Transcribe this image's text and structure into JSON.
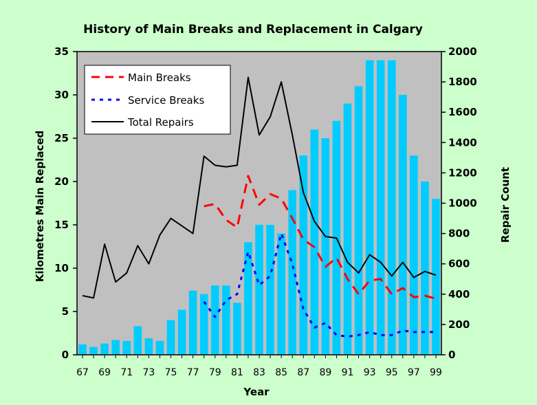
{
  "chart_data": {
    "type": "bar",
    "title": "History of Main Breaks and Replacement in Calgary",
    "xlabel": "Year",
    "ylabel": "Kilometres Main Replaced",
    "y2label": "Repair Count",
    "ylim": [
      0,
      35
    ],
    "y2lim": [
      0,
      2000
    ],
    "yticks": [
      0,
      5,
      10,
      15,
      20,
      25,
      30,
      35
    ],
    "y2ticks": [
      0,
      200,
      400,
      600,
      800,
      1000,
      1200,
      1400,
      1600,
      1800,
      2000
    ],
    "x": [
      "67",
      "68",
      "69",
      "70",
      "71",
      "72",
      "73",
      "74",
      "75",
      "76",
      "77",
      "78",
      "79",
      "80",
      "81",
      "82",
      "83",
      "84",
      "85",
      "86",
      "87",
      "88",
      "89",
      "90",
      "91",
      "92",
      "93",
      "94",
      "95",
      "96",
      "97",
      "98",
      "99"
    ],
    "xtick_labels": [
      "67",
      "69",
      "71",
      "73",
      "75",
      "77",
      "79",
      "81",
      "83",
      "85",
      "87",
      "89",
      "91",
      "93",
      "95",
      "97",
      "99"
    ],
    "grid": false,
    "legend_position": "top-left",
    "bar_series": {
      "name": "Kilometres Main Replaced",
      "color": "#00ccff",
      "values": [
        1.2,
        0.9,
        1.3,
        1.7,
        1.6,
        3.3,
        1.9,
        1.6,
        4.0,
        5.2,
        7.4,
        7.0,
        8.0,
        8.0,
        6.0,
        13.0,
        15.0,
        15.0,
        14.0,
        19.0,
        23.0,
        26.0,
        25.0,
        27.0,
        29.0,
        31.0,
        34.0,
        34.0,
        34.0,
        30.0,
        23.0,
        20.0,
        18.0
      ]
    },
    "series": [
      {
        "name": "Main Breaks",
        "color": "#ff0000",
        "dash": "long-dash",
        "axis": "right",
        "values": [
          null,
          null,
          null,
          null,
          null,
          null,
          null,
          null,
          null,
          null,
          null,
          980,
          995,
          890,
          840,
          1180,
          990,
          1060,
          1030,
          900,
          760,
          710,
          580,
          640,
          500,
          400,
          490,
          500,
          400,
          440,
          380,
          390,
          370
        ]
      },
      {
        "name": "Service Breaks",
        "color": "#0000ff",
        "dash": "short-dash",
        "axis": "right",
        "values": [
          null,
          null,
          null,
          null,
          null,
          null,
          null,
          null,
          null,
          null,
          null,
          350,
          250,
          360,
          400,
          680,
          460,
          520,
          800,
          600,
          300,
          180,
          210,
          130,
          120,
          130,
          150,
          130,
          130,
          160,
          150,
          150,
          150
        ]
      },
      {
        "name": "Total Repairs",
        "color": "#000000",
        "dash": "solid",
        "axis": "right",
        "values": [
          390,
          375,
          730,
          480,
          540,
          720,
          600,
          790,
          900,
          850,
          800,
          1310,
          1250,
          1240,
          1250,
          1830,
          1450,
          1570,
          1800,
          1450,
          1070,
          880,
          780,
          770,
          610,
          540,
          660,
          610,
          520,
          610,
          510,
          550,
          525
        ]
      }
    ]
  }
}
